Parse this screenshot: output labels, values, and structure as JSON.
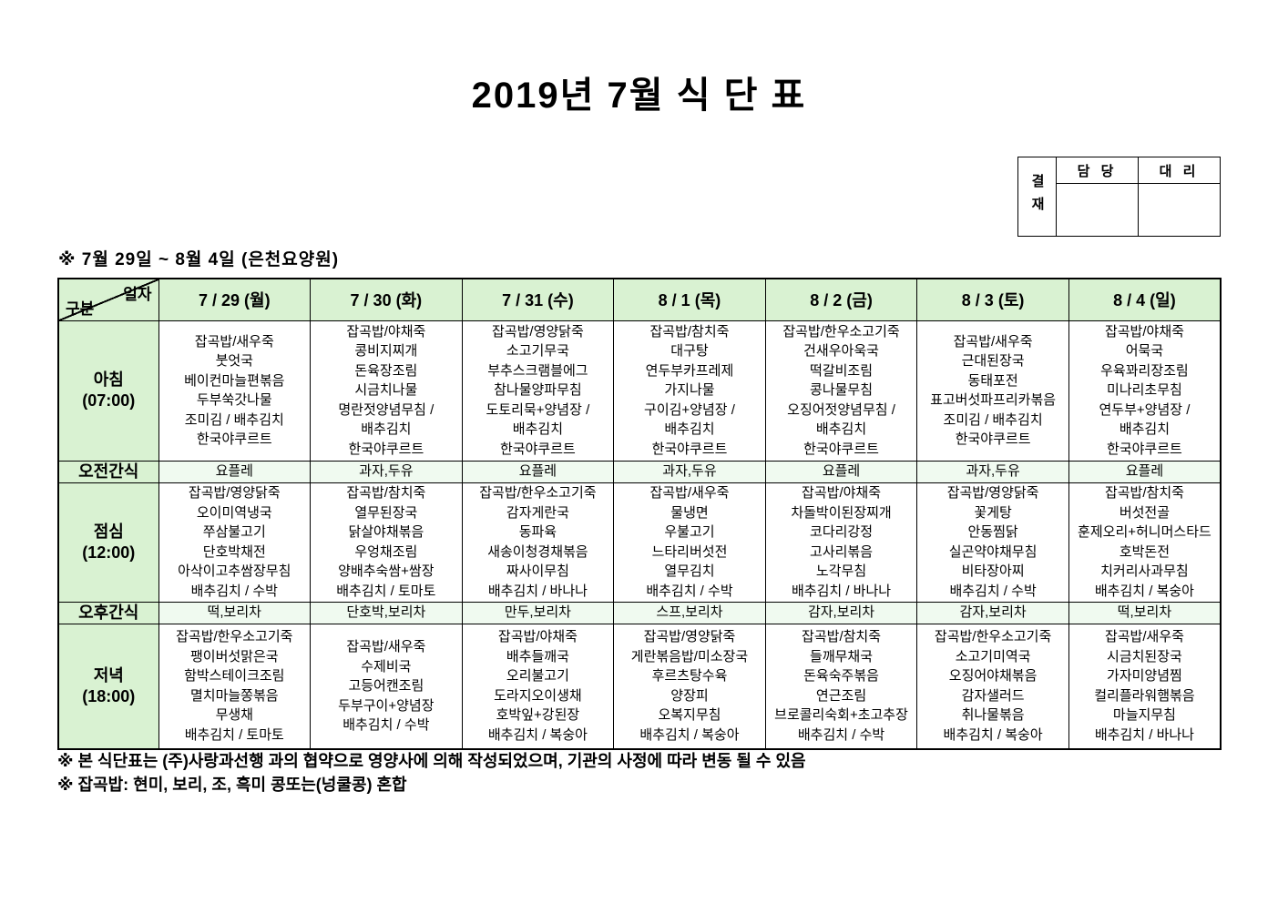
{
  "page": {
    "title": "2019년 7월 식 단 표",
    "subtitle": "※ 7월 29일 ~ 8월 4일 (은천요양원)",
    "notes": [
      "※ 본 식단표는 (주)사랑과선행 과의 협약으로 영양사에 의해 작성되었으며, 기관의 사정에 따라 변동 될 수 있음",
      "※ 잡곡밥: 현미, 보리, 조, 흑미 콩또는(넝쿨콩) 혼합"
    ]
  },
  "colors": {
    "header_green": "#d9f2d2",
    "snack_green": "#f0faf0",
    "border": "#000000"
  },
  "approval": {
    "stamp_label": "결재",
    "columns": [
      "담 당",
      "대 리"
    ]
  },
  "table": {
    "corner": {
      "top": "일자",
      "bottom": "구분"
    },
    "day_headers": [
      "7 / 29 (월)",
      "7 / 30 (화)",
      "7 / 31 (수)",
      "8 / 1 (목)",
      "8 / 2 (금)",
      "8 / 3 (토)",
      "8 / 4 (일)"
    ],
    "rows": [
      {
        "key": "breakfast",
        "type": "meal",
        "label": "아침",
        "time": "(07:00)",
        "cells": [
          [
            "잡곡밥/새우죽",
            "붓엇국",
            "베이컨마늘편볶음",
            "두부쑥갓나물",
            "조미김 / 배추김치",
            "한국야쿠르트"
          ],
          [
            "잡곡밥/야채죽",
            "콩비지찌개",
            "돈육장조림",
            "시금치나물",
            "명란젓양념무침 /",
            "배추김치",
            "한국야쿠르트"
          ],
          [
            "잡곡밥/영양닭죽",
            "소고기무국",
            "부추스크램블에그",
            "참나물양파무침",
            "도토리묵+양념장 /",
            "배추김치",
            "한국야쿠르트"
          ],
          [
            "잡곡밥/참치죽",
            "대구탕",
            "연두부카프레제",
            "가지나물",
            "구이김+양념장 /",
            "배추김치",
            "한국야쿠르트"
          ],
          [
            "잡곡밥/한우소고기죽",
            "건새우아욱국",
            "떡갈비조림",
            "콩나물무침",
            "오징어젓양념무침 /",
            "배추김치",
            "한국야쿠르트"
          ],
          [
            "잡곡밥/새우죽",
            "근대된장국",
            "동태포전",
            "표고버섯파프리카볶음",
            "조미김 / 배추김치",
            "한국야쿠르트"
          ],
          [
            "잡곡밥/야채죽",
            "어묵국",
            "우육꽈리장조림",
            "미나리초무침",
            "연두부+양념장 /",
            "배추김치",
            "한국야쿠르트"
          ]
        ]
      },
      {
        "key": "snack-am",
        "type": "snack",
        "label": "오전간식",
        "cells": [
          "요플레",
          "과자,두유",
          "요플레",
          "과자,두유",
          "요플레",
          "과자,두유",
          "요플레"
        ]
      },
      {
        "key": "lunch",
        "type": "meal",
        "label": "점심",
        "time": "(12:00)",
        "cells": [
          [
            "잡곡밥/영양닭죽",
            "오이미역냉국",
            "쭈삼불고기",
            "단호박채전",
            "아삭이고추쌈장무침",
            "배추김치 / 수박"
          ],
          [
            "잡곡밥/참치죽",
            "열무된장국",
            "닭살야채볶음",
            "우엉채조림",
            "양배추숙쌈+쌈장",
            "배추김치 / 토마토"
          ],
          [
            "잡곡밥/한우소고기죽",
            "감자게란국",
            "동파육",
            "새송이청경채볶음",
            "짜사이무침",
            "배추김치 / 바나나"
          ],
          [
            "잡곡밥/새우죽",
            "물냉면",
            "우불고기",
            "느타리버섯전",
            "열무김치",
            "배추김치 / 수박"
          ],
          [
            "잡곡밥/야채죽",
            "차돌박이된장찌개",
            "코다리강정",
            "고사리볶음",
            "노각무침",
            "배추김치 / 바나나"
          ],
          [
            "잡곡밥/영양닭죽",
            "꽃게탕",
            "안동찜닭",
            "실곤약야채무침",
            "비타장아찌",
            "배추김치 / 수박"
          ],
          [
            "잡곡밥/참치죽",
            "버섯전골",
            "훈제오리+허니머스타드",
            "호박돈전",
            "치커리사과무침",
            "배추김치 / 복숭아"
          ]
        ]
      },
      {
        "key": "snack-pm",
        "type": "snack",
        "label": "오후간식",
        "cells": [
          "떡,보리차",
          "단호박,보리차",
          "만두,보리차",
          "스프,보리차",
          "감자,보리차",
          "감자,보리차",
          "떡,보리차"
        ]
      },
      {
        "key": "dinner",
        "type": "meal",
        "label": "저녁",
        "time": "(18:00)",
        "cells": [
          [
            "잡곡밥/한우소고기죽",
            "팽이버섯맑은국",
            "함박스테이크조림",
            "멸치마늘쫑볶음",
            "무생채",
            "배추김치 / 토마토"
          ],
          [
            "잡곡밥/새우죽",
            "수제비국",
            "고등어캔조림",
            "두부구이+양념장",
            "배추김치 / 수박"
          ],
          [
            "잡곡밥/야채죽",
            "배추들깨국",
            "오리불고기",
            "도라지오이생채",
            "호박잎+강된장",
            "배추김치 / 복숭아"
          ],
          [
            "잡곡밥/영양닭죽",
            "게란볶음밥/미소장국",
            "후르츠탕수육",
            "양장피",
            "오복지무침",
            "배추김치 / 복숭아"
          ],
          [
            "잡곡밥/참치죽",
            "들깨무채국",
            "돈육숙주볶음",
            "연근조림",
            "브로콜리숙회+초고추장",
            "배추김치 / 수박"
          ],
          [
            "잡곡밥/한우소고기죽",
            "소고기미역국",
            "오징어야채볶음",
            "감자샐러드",
            "취나물볶음",
            "배추김치 / 복숭아"
          ],
          [
            "잡곡밥/새우죽",
            "시금치된장국",
            "가자미양념찜",
            "컬리플라워햄볶음",
            "마늘지무침",
            "배추김치 / 바나나"
          ]
        ]
      }
    ]
  }
}
